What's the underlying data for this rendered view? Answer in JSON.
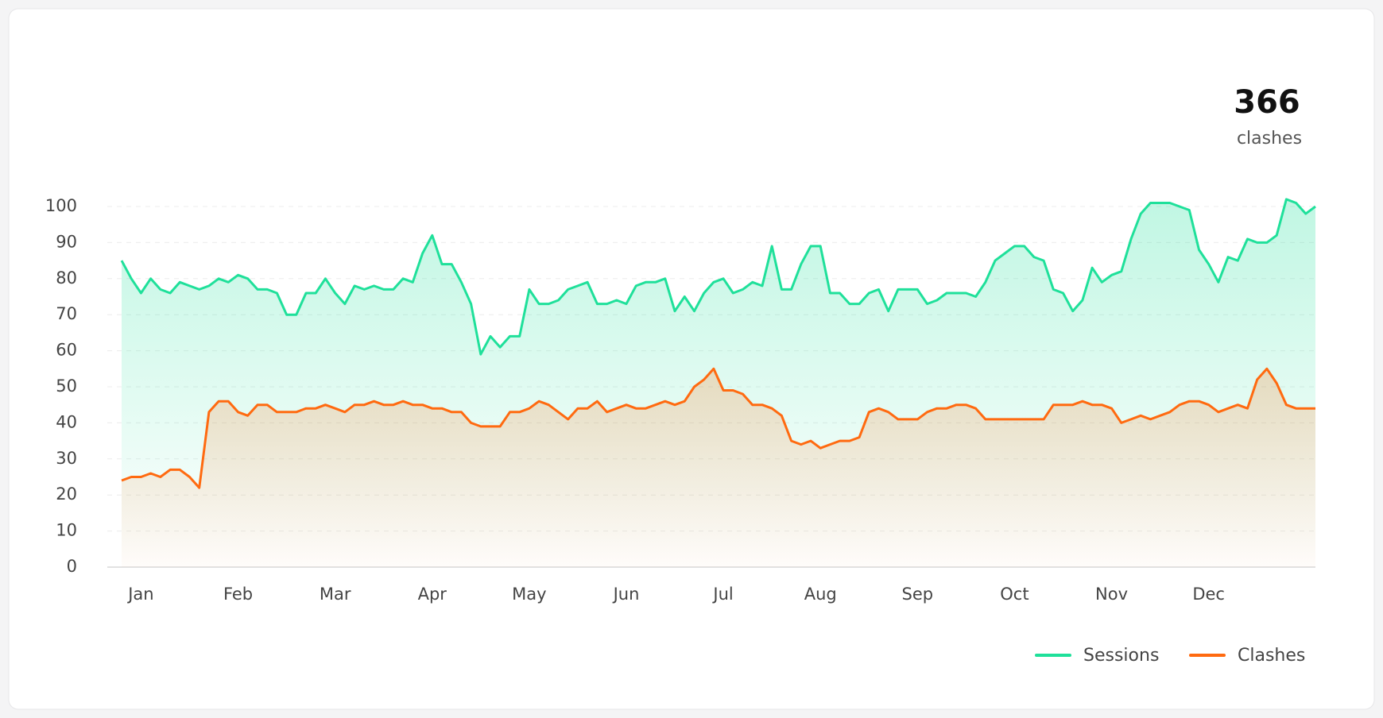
{
  "chart_data": {
    "type": "line",
    "stat": {
      "value": 366,
      "label": "clashes"
    },
    "categories": [
      null,
      null,
      "Jan",
      null,
      null,
      null,
      null,
      null,
      null,
      null,
      null,
      null,
      "Feb",
      null,
      null,
      null,
      null,
      null,
      null,
      null,
      null,
      null,
      "Mar",
      null,
      null,
      null,
      null,
      null,
      null,
      null,
      null,
      null,
      "Apr",
      null,
      null,
      null,
      null,
      null,
      null,
      null,
      null,
      null,
      "May",
      null,
      null,
      null,
      null,
      null,
      null,
      null,
      null,
      null,
      "Jun",
      null,
      null,
      null,
      null,
      null,
      null,
      null,
      null,
      null,
      "Jul",
      null,
      null,
      null,
      null,
      null,
      null,
      null,
      null,
      null,
      "Aug",
      null,
      null,
      null,
      null,
      null,
      null,
      null,
      null,
      null,
      "Sep",
      null,
      null,
      null,
      null,
      null,
      null,
      null,
      null,
      null,
      "Oct",
      null,
      null,
      null,
      null,
      null,
      null,
      null,
      null,
      null,
      "Nov",
      null,
      null,
      null,
      null,
      null,
      null,
      null,
      null,
      null,
      "Dec",
      null,
      null,
      null,
      null,
      null,
      null,
      null,
      null,
      null,
      null,
      null
    ],
    "series": [
      {
        "name": "Sessions",
        "color": "#1fe09a",
        "values": [
          85,
          80,
          76,
          80,
          77,
          76,
          79,
          78,
          77,
          78,
          80,
          79,
          81,
          80,
          77,
          77,
          76,
          70,
          70,
          76,
          76,
          80,
          76,
          73,
          78,
          77,
          78,
          77,
          77,
          80,
          79,
          87,
          92,
          84,
          84,
          79,
          73,
          59,
          64,
          61,
          64,
          64,
          77,
          73,
          73,
          74,
          77,
          78,
          79,
          73,
          73,
          74,
          73,
          78,
          79,
          79,
          80,
          71,
          75,
          71,
          76,
          79,
          80,
          76,
          77,
          79,
          78,
          89,
          77,
          77,
          84,
          89,
          89,
          76,
          76,
          73,
          73,
          76,
          77,
          71,
          77,
          77,
          77,
          73,
          74,
          76,
          76,
          76,
          75,
          79,
          85,
          87,
          89,
          89,
          86,
          85,
          77,
          76,
          71,
          74,
          83,
          79,
          81,
          82,
          91,
          98,
          101,
          101,
          101,
          100,
          99,
          88,
          84,
          79,
          86,
          85,
          91,
          90,
          90,
          92,
          102,
          101,
          98,
          100
        ]
      },
      {
        "name": "Clashes",
        "color": "#ff6a10",
        "values": [
          24,
          25,
          25,
          26,
          25,
          27,
          27,
          25,
          22,
          43,
          46,
          46,
          43,
          42,
          45,
          45,
          43,
          43,
          43,
          44,
          44,
          45,
          44,
          43,
          45,
          45,
          46,
          45,
          45,
          46,
          45,
          45,
          44,
          44,
          43,
          43,
          40,
          39,
          39,
          39,
          43,
          43,
          44,
          46,
          45,
          43,
          41,
          44,
          44,
          46,
          43,
          44,
          45,
          44,
          44,
          45,
          46,
          45,
          46,
          50,
          52,
          55,
          49,
          49,
          48,
          45,
          45,
          44,
          42,
          35,
          34,
          35,
          33,
          34,
          35,
          35,
          36,
          43,
          44,
          43,
          41,
          41,
          41,
          43,
          44,
          44,
          45,
          45,
          44,
          41,
          41,
          41,
          41,
          41,
          41,
          41,
          45,
          45,
          45,
          46,
          45,
          45,
          44,
          40,
          41,
          42,
          41,
          42,
          43,
          45,
          46,
          46,
          45,
          43,
          44,
          45,
          44,
          52,
          55,
          51,
          45,
          44,
          44,
          44
        ]
      }
    ],
    "ylim": [
      0,
      100
    ],
    "yticks": [
      0,
      10,
      20,
      30,
      40,
      50,
      60,
      70,
      80,
      90,
      100
    ],
    "grid": true,
    "legend": "bottom-right"
  }
}
